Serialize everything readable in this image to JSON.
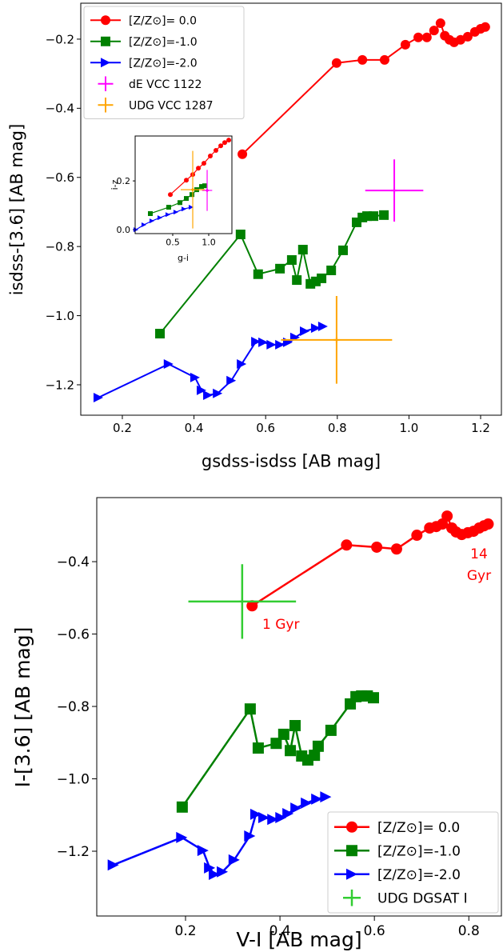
{
  "chart_data": [
    {
      "type": "line",
      "xlabel": "gsdss-isdss [AB mag]",
      "ylabel": "isdss-[3.6] [AB mag]",
      "xlim": [
        0.084,
        1.258
      ],
      "ylim": [
        -1.288,
        -0.096
      ],
      "xticks": [
        0.2,
        0.4,
        0.6,
        0.8,
        {
          "value": 1,
          "label": "1.0"
        },
        1.2
      ],
      "yticks": [
        {
          "value": -1.2,
          "label": "−1.2"
        },
        {
          "value": -1,
          "label": "−1.0"
        },
        {
          "value": -0.8,
          "label": "−0.8"
        },
        {
          "value": -0.6,
          "label": "−0.6"
        },
        {
          "value": -0.4,
          "label": "−0.4"
        },
        {
          "value": -0.2,
          "label": "−0.2"
        }
      ],
      "grid": false,
      "legend": "upper left",
      "series": [
        {
          "name": "[Z/Z⊙]= 0.0",
          "color": "#ff0000",
          "marker": "circle",
          "x": [
            0.535,
            0.798,
            0.87,
            0.932,
            0.99,
            1.026,
            1.05,
            1.07,
            1.088,
            1.1,
            1.113,
            1.126,
            1.144,
            1.164,
            1.184,
            1.2,
            1.213
          ],
          "y": [
            -0.533,
            -0.269,
            -0.26,
            -0.26,
            -0.216,
            -0.195,
            -0.195,
            -0.175,
            -0.154,
            -0.19,
            -0.202,
            -0.209,
            -0.202,
            -0.193,
            -0.179,
            -0.17,
            -0.165
          ]
        },
        {
          "name": "[Z/Z⊙]=-1.0",
          "color": "#008000",
          "marker": "square",
          "x": [
            0.305,
            0.53,
            0.579,
            0.64,
            0.673,
            0.687,
            0.704,
            0.725,
            0.74,
            0.756,
            0.783,
            0.816,
            0.854,
            0.87,
            0.883,
            0.901,
            0.93
          ],
          "y": [
            -1.052,
            -0.765,
            -0.88,
            -0.864,
            -0.839,
            -0.897,
            -0.809,
            -0.908,
            -0.901,
            -0.892,
            -0.869,
            -0.811,
            -0.73,
            -0.716,
            -0.712,
            -0.712,
            -0.709
          ]
        },
        {
          "name": "[Z/Z⊙]=-2.0",
          "color": "#0000ff",
          "marker": "triangle-right",
          "x": [
            0.133,
            0.329,
            0.403,
            0.421,
            0.439,
            0.466,
            0.504,
            0.533,
            0.573,
            0.593,
            0.616,
            0.64,
            0.662,
            0.682,
            0.709,
            0.74,
            0.76
          ],
          "y": [
            -1.237,
            -1.14,
            -1.179,
            -1.216,
            -1.23,
            -1.225,
            -1.188,
            -1.14,
            -1.075,
            -1.077,
            -1.084,
            -1.084,
            -1.077,
            -1.063,
            -1.045,
            -1.036,
            -1.031
          ]
        },
        {
          "name": "dE VCC 1122",
          "color": "#ff00ff",
          "marker": "plus",
          "x": [
            0.959
          ],
          "y": [
            -0.638
          ],
          "xerr": [
            0.081
          ],
          "yerr": [
            0.09
          ]
        },
        {
          "name": "UDG VCC 1287",
          "color": "#ffa500",
          "marker": "plus",
          "x": [
            0.798
          ],
          "y": [
            -1.07
          ],
          "xerr": [
            0.155
          ],
          "yerr": [
            0.127
          ]
        }
      ]
    },
    {
      "type": "line",
      "xlabel": "g-i",
      "ylabel": "i-z",
      "xlim": [
        -0.022,
        1.322
      ],
      "ylim": [
        -0.016,
        0.384
      ],
      "xticks": [
        0.5,
        {
          "value": 1,
          "label": "1.0"
        }
      ],
      "yticks": [
        {
          "value": 0,
          "label": "0.0"
        },
        0.2
      ],
      "grid": false,
      "series": [
        {
          "color": "#ff0000",
          "marker": "circle",
          "x": [
            0.467,
            0.689,
            0.778,
            0.856,
            0.933,
            1.022,
            1.1,
            1.167,
            1.222,
            1.278
          ],
          "y": [
            0.144,
            0.203,
            0.226,
            0.252,
            0.272,
            0.302,
            0.325,
            0.344,
            0.357,
            0.367
          ]
        },
        {
          "color": "#008000",
          "marker": "square",
          "x": [
            0.189,
            0.444,
            0.6,
            0.689,
            0.767,
            0.833,
            0.9,
            0.944
          ],
          "y": [
            0.066,
            0.092,
            0.111,
            0.128,
            0.144,
            0.164,
            0.177,
            0.18
          ]
        },
        {
          "color": "#0000ff",
          "marker": "triangle-right",
          "x": [
            -0.011,
            0.1,
            0.211,
            0.322,
            0.433,
            0.544,
            0.656,
            0.756
          ],
          "y": [
            0,
            0.02,
            0.036,
            0.049,
            0.062,
            0.072,
            0.085,
            0.092
          ]
        },
        {
          "color": "#ff00ff",
          "marker": "plus",
          "x": [
            0.978
          ],
          "y": [
            0.161
          ],
          "xerr": [
            0.07
          ],
          "yerr": [
            0.084
          ]
        },
        {
          "color": "#ffa500",
          "marker": "plus",
          "x": [
            0.778
          ],
          "y": [
            0.164
          ],
          "xerr": [
            0.167
          ],
          "yerr": [
            0.159
          ]
        }
      ]
    },
    {
      "type": "line",
      "xlabel": "V-I [AB mag]",
      "ylabel": "I-[3.6] [AB mag]",
      "xlim": [
        0.012,
        0.869
      ],
      "ylim": [
        -1.379,
        -0.223
      ],
      "xticks": [
        0.2,
        0.4,
        0.6,
        0.8
      ],
      "yticks": [
        {
          "value": -1.2,
          "label": "−1.2"
        },
        {
          "value": -1,
          "label": "−1.0"
        },
        {
          "value": -0.8,
          "label": "−0.8"
        },
        {
          "value": -0.6,
          "label": "−0.6"
        },
        {
          "value": -0.4,
          "label": "−0.4"
        }
      ],
      "grid": false,
      "legend": "lower right",
      "annotations": [
        {
          "text": "1 Gyr",
          "color": "#ff0000"
        },
        {
          "text": "14 Gyr",
          "color": "#ff0000"
        }
      ],
      "series": [
        {
          "name": "[Z/Z⊙]= 0.0",
          "color": "#ff0000",
          "marker": "circle",
          "x": [
            0.341,
            0.541,
            0.605,
            0.647,
            0.69,
            0.717,
            0.731,
            0.744,
            0.754,
            0.764,
            0.773,
            0.785,
            0.798,
            0.81,
            0.822,
            0.832,
            0.841
          ],
          "y": [
            -0.522,
            -0.354,
            -0.36,
            -0.365,
            -0.327,
            -0.307,
            -0.303,
            -0.296,
            -0.274,
            -0.307,
            -0.318,
            -0.325,
            -0.32,
            -0.316,
            -0.307,
            -0.301,
            -0.296
          ]
        },
        {
          "name": "[Z/Z⊙]=-1.0",
          "color": "#008000",
          "marker": "square",
          "x": [
            0.193,
            0.337,
            0.354,
            0.392,
            0.408,
            0.422,
            0.432,
            0.446,
            0.459,
            0.473,
            0.481,
            0.508,
            0.549,
            0.561,
            0.573,
            0.585,
            0.598
          ],
          "y": [
            -1.078,
            -0.807,
            -0.915,
            -0.902,
            -0.877,
            -0.922,
            -0.853,
            -0.937,
            -0.948,
            -0.935,
            -0.91,
            -0.866,
            -0.793,
            -0.773,
            -0.771,
            -0.771,
            -0.776
          ]
        },
        {
          "name": "[Z/Z⊙]=-2.0",
          "color": "#0000ff",
          "marker": "triangle-right",
          "x": [
            0.047,
            0.192,
            0.237,
            0.251,
            0.261,
            0.278,
            0.303,
            0.336,
            0.349,
            0.366,
            0.385,
            0.402,
            0.417,
            0.434,
            0.456,
            0.478,
            0.497
          ],
          "y": [
            -1.238,
            -1.162,
            -1.198,
            -1.246,
            -1.264,
            -1.257,
            -1.224,
            -1.158,
            -1.098,
            -1.107,
            -1.112,
            -1.107,
            -1.096,
            -1.081,
            -1.067,
            -1.056,
            -1.05
          ]
        },
        {
          "name": "UDG DGSAT I",
          "color": "#32cd32",
          "marker": "plus",
          "x": [
            0.32
          ],
          "y": [
            -0.51
          ],
          "xerr": [
            0.114
          ],
          "yerr": [
            0.103
          ]
        }
      ]
    }
  ]
}
